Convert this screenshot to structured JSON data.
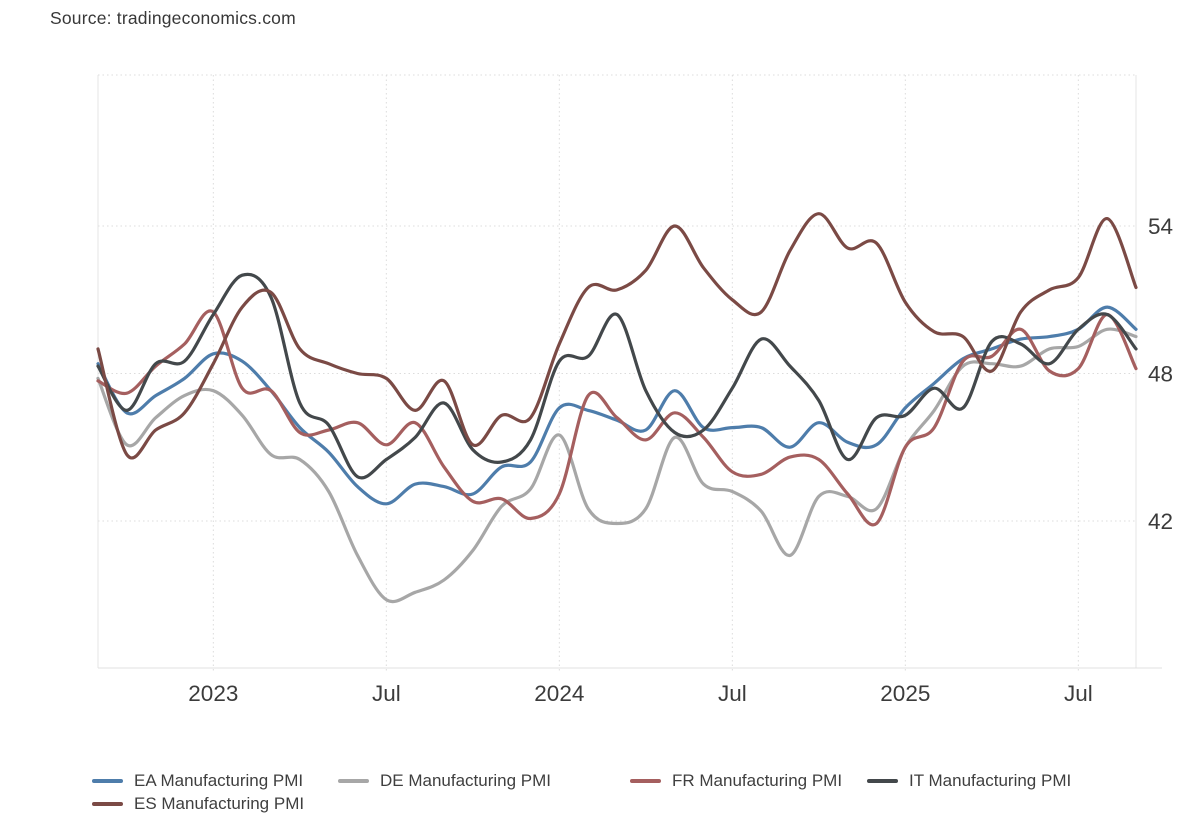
{
  "source": "Source: tradingeconomics.com",
  "chart_data": {
    "type": "line",
    "title": "",
    "xlabel": "",
    "ylabel": "",
    "y_axis_side": "right",
    "grid": true,
    "legend_position": "bottom",
    "ylim": [
      36,
      60
    ],
    "y_ticks": [
      42,
      48,
      54
    ],
    "x_tick_labels": [
      "2023",
      "Jul",
      "2024",
      "Jul",
      "2025",
      "Jul"
    ],
    "x_tick_month_index": [
      4,
      10,
      16,
      22,
      28,
      34
    ],
    "x_months": [
      "2022-09",
      "2022-10",
      "2022-11",
      "2022-12",
      "2023-01",
      "2023-02",
      "2023-03",
      "2023-04",
      "2023-05",
      "2023-06",
      "2023-07",
      "2023-08",
      "2023-09",
      "2023-10",
      "2023-11",
      "2023-12",
      "2024-01",
      "2024-02",
      "2024-03",
      "2024-04",
      "2024-05",
      "2024-06",
      "2024-07",
      "2024-08",
      "2024-09",
      "2024-10",
      "2024-11",
      "2024-12",
      "2025-01",
      "2025-02",
      "2025-03",
      "2025-04",
      "2025-05",
      "2025-06",
      "2025-07",
      "2025-08",
      "2025-09"
    ],
    "series": [
      {
        "name": "EA Manufacturing PMI",
        "color": "#4e7dab",
        "values": [
          48.4,
          46.4,
          47.1,
          47.8,
          48.8,
          48.5,
          47.3,
          45.8,
          44.8,
          43.4,
          42.7,
          43.5,
          43.4,
          43.1,
          44.2,
          44.4,
          46.6,
          46.5,
          46.1,
          45.7,
          47.3,
          45.8,
          45.8,
          45.8,
          45.0,
          46.0,
          45.2,
          45.1,
          46.6,
          47.6,
          48.6,
          49.0,
          49.4,
          49.5,
          49.8,
          50.7,
          49.8
        ]
      },
      {
        "name": "DE Manufacturing PMI",
        "color": "#a7a7a7",
        "values": [
          47.8,
          45.1,
          46.2,
          47.1,
          47.3,
          46.3,
          44.7,
          44.5,
          43.2,
          40.6,
          38.8,
          39.1,
          39.6,
          40.8,
          42.6,
          43.3,
          45.5,
          42.5,
          41.9,
          42.5,
          45.4,
          43.5,
          43.2,
          42.4,
          40.6,
          43.0,
          43.0,
          42.5,
          45.0,
          46.5,
          48.3,
          48.4,
          48.3,
          49.0,
          49.1,
          49.8,
          49.5
        ]
      },
      {
        "name": "FR Manufacturing PMI",
        "color": "#a55f5f",
        "values": [
          47.7,
          47.2,
          48.3,
          49.2,
          50.5,
          47.4,
          47.3,
          45.6,
          45.7,
          46.0,
          45.1,
          46.0,
          44.2,
          42.8,
          42.9,
          42.1,
          43.1,
          47.1,
          46.2,
          45.3,
          46.4,
          45.4,
          44.0,
          43.9,
          44.6,
          44.5,
          43.1,
          41.9,
          45.0,
          45.8,
          48.5,
          48.7,
          49.8,
          48.1,
          48.2,
          50.4,
          48.2
        ]
      },
      {
        "name": "IT Manufacturing PMI",
        "color": "#43484b",
        "values": [
          48.3,
          46.5,
          48.4,
          48.5,
          50.4,
          52.0,
          51.1,
          46.8,
          45.9,
          43.8,
          44.5,
          45.4,
          46.8,
          44.9,
          44.4,
          45.3,
          48.5,
          48.7,
          50.4,
          47.3,
          45.6,
          45.7,
          47.4,
          49.4,
          48.3,
          46.9,
          44.5,
          46.2,
          46.3,
          47.4,
          46.6,
          49.3,
          49.2,
          48.4,
          49.8,
          50.4,
          49.0
        ]
      },
      {
        "name": "ES Manufacturing PMI",
        "color": "#7b4a45",
        "values": [
          49.0,
          44.7,
          45.7,
          46.4,
          48.4,
          50.7,
          51.3,
          49.0,
          48.4,
          48.0,
          47.8,
          46.5,
          47.7,
          45.1,
          46.3,
          46.2,
          49.2,
          51.5,
          51.4,
          52.2,
          54.0,
          52.3,
          51.0,
          50.5,
          53.0,
          54.5,
          53.1,
          53.3,
          50.9,
          49.7,
          49.5,
          48.1,
          50.5,
          51.4,
          51.9,
          54.3,
          51.5
        ]
      }
    ]
  }
}
